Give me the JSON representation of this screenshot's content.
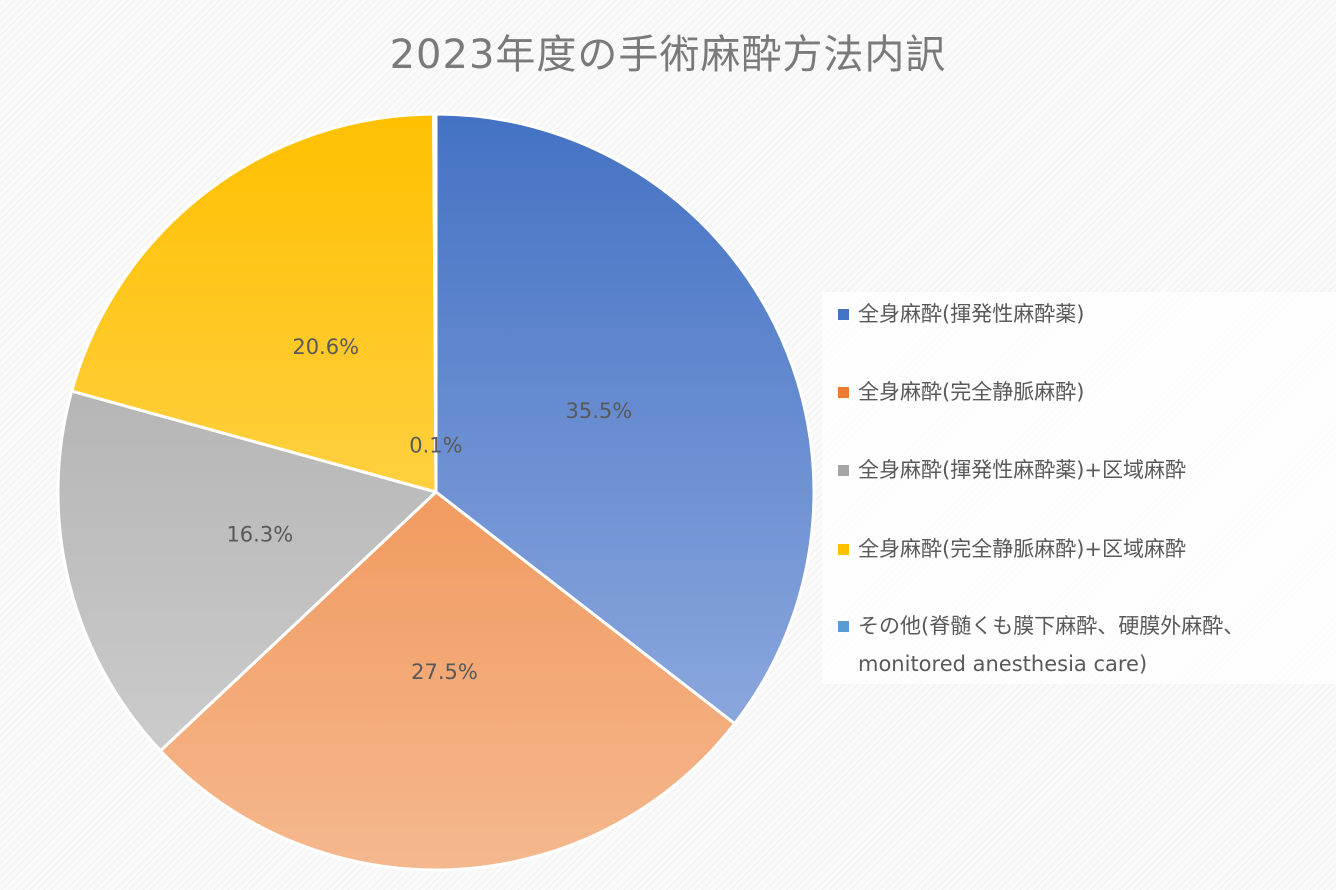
{
  "chart_data": {
    "type": "pie",
    "title": "2023年度の手術麻酔方法内訳",
    "unit": "%",
    "start_angle": "12 o'clock, clockwise",
    "slices": [
      {
        "label": "全身麻酔(揮発性麻酔薬)",
        "value": 35.5,
        "display": "35.5%",
        "color_top": "#4472c4",
        "color_bottom": "#9bb3e3",
        "swatch": "#4472c4"
      },
      {
        "label": "全身麻酔(完全静脈麻酔)",
        "value": 27.5,
        "display": "27.5%",
        "color_top": "#ed7d31",
        "color_bottom": "#f5b88e",
        "swatch": "#ed7d31"
      },
      {
        "label": "全身麻酔(揮発性麻酔薬)+区域麻酔",
        "value": 16.3,
        "display": "16.3%",
        "color_top": "#a5a5a5",
        "color_bottom": "#d2d2d2",
        "swatch": "#a5a5a5"
      },
      {
        "label": "全身麻酔(完全静脈麻酔)+区域麻酔",
        "value": 20.6,
        "display": "20.6%",
        "color_top": "#ffc000",
        "color_bottom": "#ffdf7f",
        "swatch": "#ffc000"
      },
      {
        "label": "その他(脊髄くも膜下麻酔、硬膜外麻酔、monitored anesthesia care)",
        "label_lines": [
          "その他(脊髄くも膜下麻酔、硬膜外麻酔、",
          "monitored anesthesia care)"
        ],
        "value": 0.1,
        "display": "0.1%",
        "color_top": "#5b9bd5",
        "color_bottom": "#9dc3e6",
        "swatch": "#5b9bd5"
      }
    ],
    "legend_position": "right"
  }
}
